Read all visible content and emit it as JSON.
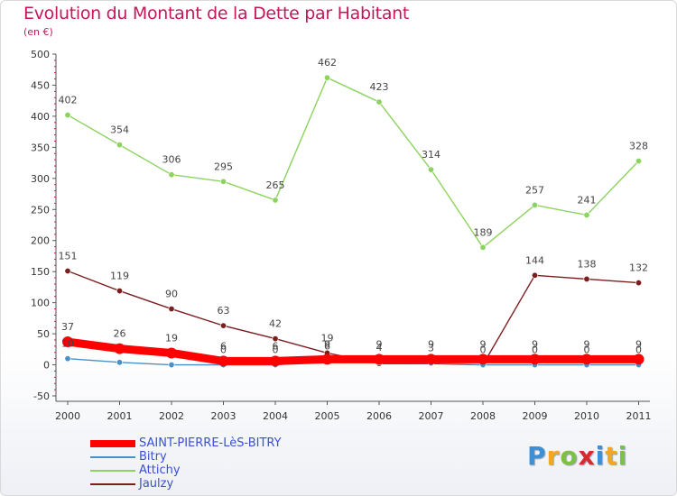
{
  "title": "Evolution du Montant de la Dette par Habitant",
  "unit": "(en €)",
  "logo": {
    "letters": [
      "P",
      "r",
      "o",
      "x",
      "i",
      "t",
      "i"
    ],
    "colors": [
      "#3d8fd6",
      "#f5a623",
      "#7cc142",
      "#d9282f",
      "#3d8fd6",
      "#f5a623",
      "#7cc142"
    ]
  },
  "chart_data": {
    "type": "line",
    "title": "Evolution du Montant de la Dette par Habitant",
    "ylabel": "(en €)",
    "x": [
      "2000",
      "2001",
      "2002",
      "2003",
      "2004",
      "2005",
      "2006",
      "2007",
      "2008",
      "2009",
      "2010",
      "2011"
    ],
    "ylim": [
      -50,
      500
    ],
    "yticks": [
      -50,
      0,
      50,
      100,
      150,
      200,
      250,
      300,
      350,
      400,
      450,
      500
    ],
    "grid": false,
    "legend_position": "bottom-left",
    "series": [
      {
        "name": "SAINT-PIERRE-LèS-BITRY",
        "color": "#ff0000",
        "values": [
          37,
          26,
          19,
          6,
          6,
          9,
          9,
          9,
          9,
          9,
          9,
          9
        ],
        "labels": [
          "37",
          "26",
          "19",
          "6",
          "6",
          "9",
          "9",
          "9",
          "9",
          "9",
          "9",
          "9"
        ]
      },
      {
        "name": "Bitry",
        "color": "#4a90c8",
        "values": [
          10,
          4,
          0,
          0,
          0,
          6,
          4,
          3,
          0,
          0,
          0,
          0
        ],
        "labels": [
          "10",
          "",
          "",
          "0",
          "0",
          "6",
          "4",
          "3",
          "0",
          "0",
          "0",
          "0"
        ]
      },
      {
        "name": "Attichy",
        "color": "#8dd35f",
        "values": [
          402,
          354,
          306,
          295,
          265,
          462,
          423,
          314,
          189,
          257,
          241,
          328
        ],
        "labels": [
          "402",
          "354",
          "306",
          "295",
          "265",
          "462",
          "423",
          "314",
          "189",
          "257",
          "241",
          "328"
        ]
      },
      {
        "name": "Jaulzy",
        "color": "#7b1e1e",
        "values": [
          151,
          119,
          90,
          63,
          42,
          19,
          2,
          2,
          0,
          144,
          138,
          132
        ],
        "labels": [
          "151",
          "119",
          "90",
          "63",
          "42",
          "19",
          "",
          "",
          "",
          "144",
          "138",
          "132"
        ]
      }
    ]
  }
}
